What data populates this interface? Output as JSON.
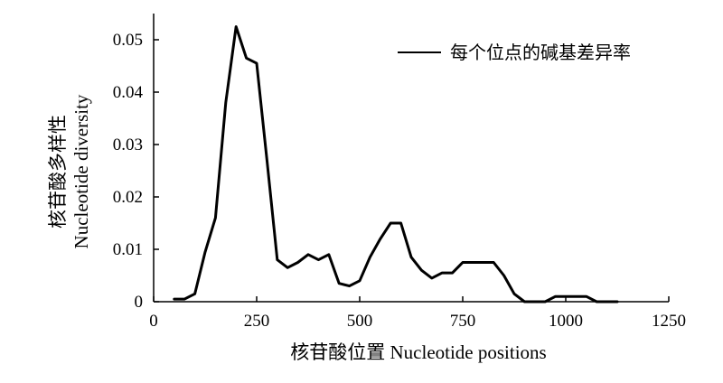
{
  "chart_data": {
    "type": "line",
    "xlabel": "核苷酸位置 Nucleotide positions",
    "ylabel_cn": "核苷酸多样性",
    "ylabel_en": "Nucleotide diversity",
    "xlim": [
      0,
      1250
    ],
    "ylim": [
      0,
      0.055
    ],
    "x_ticks": [
      0,
      250,
      500,
      750,
      1000,
      1250
    ],
    "x_tick_labels": [
      "0",
      "250",
      "500",
      "750",
      "1000",
      "1250"
    ],
    "y_ticks": [
      0,
      0.01,
      0.02,
      0.03,
      0.04,
      0.05
    ],
    "y_tick_labels": [
      "0",
      "0.01",
      "0.02",
      "0.03",
      "0.04",
      "0.05"
    ],
    "legend": {
      "position": "top-right"
    },
    "grid": false,
    "series": [
      {
        "name": "每个位点的碱基差异率",
        "color": "#000000",
        "x": [
          50,
          75,
          100,
          125,
          150,
          175,
          200,
          225,
          250,
          275,
          300,
          325,
          350,
          375,
          400,
          425,
          450,
          475,
          500,
          525,
          550,
          575,
          600,
          625,
          650,
          675,
          700,
          725,
          750,
          775,
          800,
          825,
          850,
          875,
          900,
          925,
          950,
          975,
          1000,
          1025,
          1050,
          1075,
          1100,
          1125
        ],
        "y": [
          0.0005,
          0.0005,
          0.0015,
          0.0095,
          0.016,
          0.038,
          0.0525,
          0.0465,
          0.0455,
          0.027,
          0.008,
          0.0065,
          0.0075,
          0.009,
          0.008,
          0.009,
          0.0035,
          0.003,
          0.004,
          0.0085,
          0.012,
          0.015,
          0.015,
          0.0085,
          0.006,
          0.0045,
          0.0055,
          0.0055,
          0.0075,
          0.0075,
          0.0075,
          0.0075,
          0.005,
          0.0015,
          0.0,
          0.0,
          0.0,
          0.001,
          0.001,
          0.001,
          0.001,
          0.0,
          0.0,
          0.0
        ]
      }
    ]
  }
}
